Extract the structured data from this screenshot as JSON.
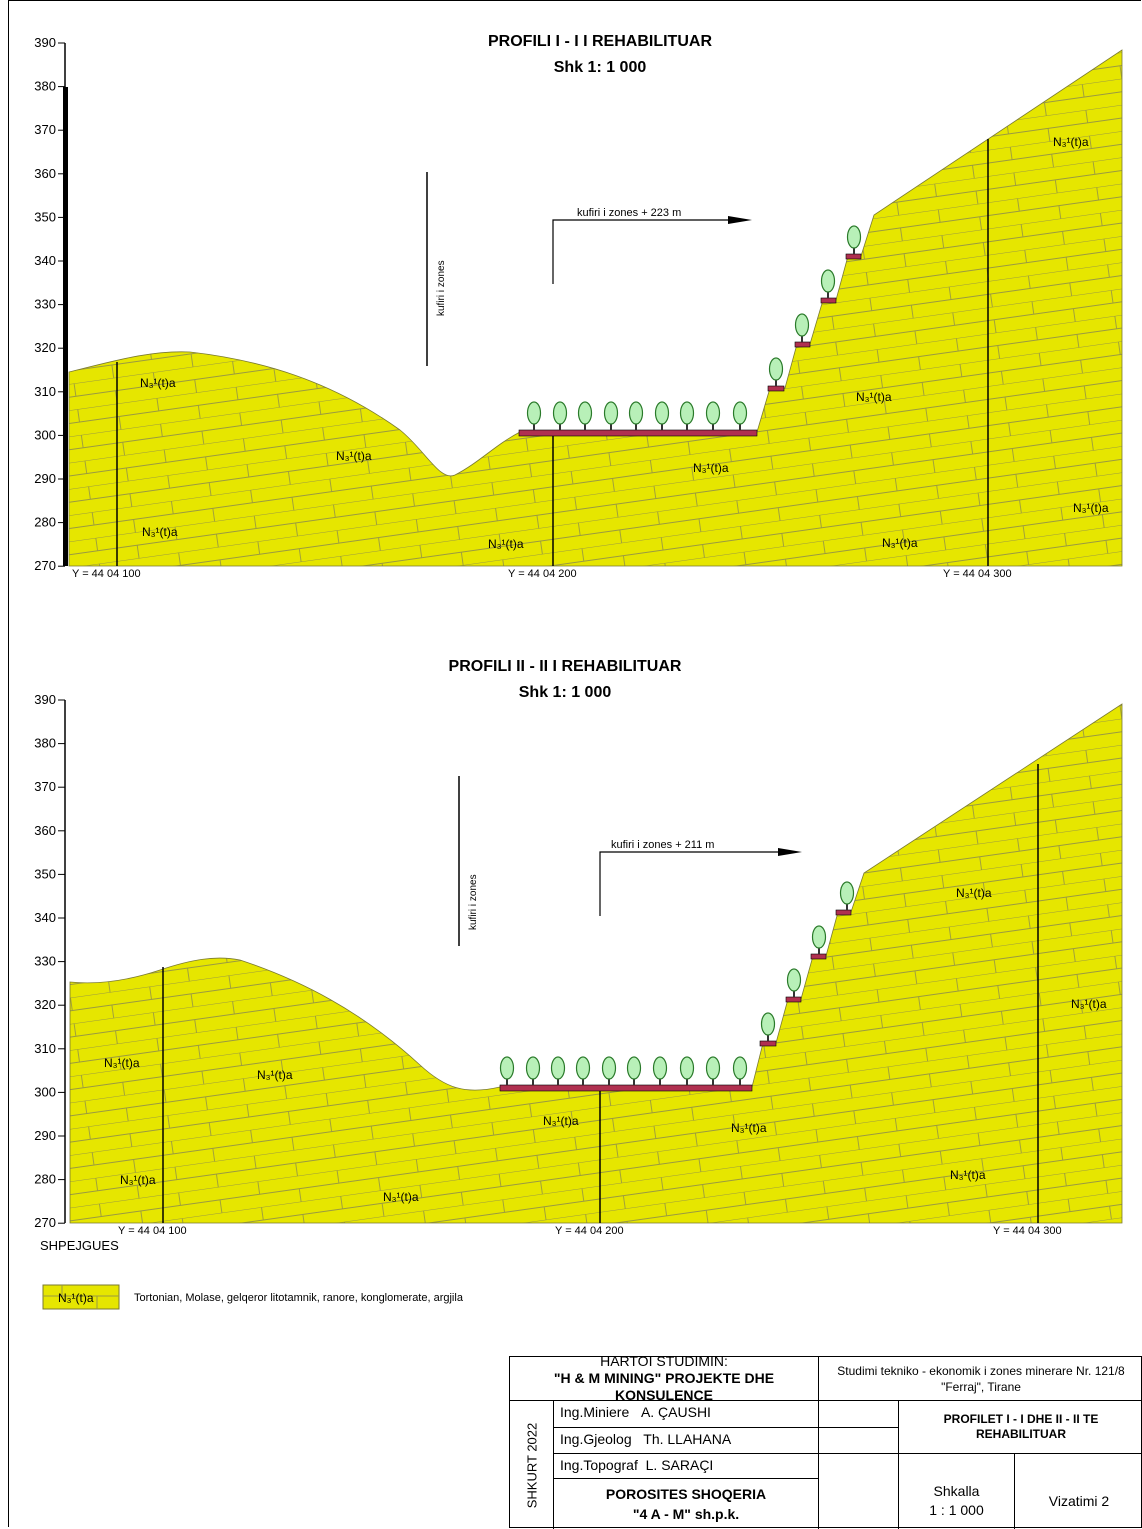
{
  "profile1": {
    "title": "PROFILI I - I I REHABILITUAR",
    "scale": "Shk 1: 1 000",
    "zone_boundary_label": "kufiri i zones",
    "zone_offset_label": "kufiri i zones + 223 m",
    "y_axis_ticks": [
      "390",
      "380",
      "370",
      "360",
      "350",
      "340",
      "330",
      "320",
      "310",
      "300",
      "290",
      "280",
      "270"
    ],
    "section_labels": [
      "Y = 44 04 100",
      "Y = 44 04 200",
      "Y = 44 04 300"
    ],
    "formation_label": "N₃¹(t)a",
    "formation_label_count": 10
  },
  "profile2": {
    "title": "PROFILI II - II I REHABILITUAR",
    "scale": "Shk 1: 1 000",
    "zone_boundary_label": "kufiri i zones",
    "zone_offset_label": "kufiri i zones + 211 m",
    "y_axis_ticks": [
      "390",
      "380",
      "370",
      "360",
      "350",
      "340",
      "330",
      "320",
      "310",
      "300",
      "290",
      "280",
      "270"
    ],
    "section_labels": [
      "Y = 44 04 100",
      "Y = 44 04 200",
      "Y = 44 04 300"
    ],
    "formation_label": "N₃¹(t)a",
    "formation_label_count": 10
  },
  "legend": {
    "title": "SHPEJGUES",
    "swatch_label": "N₃¹(t)a",
    "description": "Tortonian, Molase, gelqeror litotamnik, ranore, konglomerate, argjila"
  },
  "title_block": {
    "author_heading": "HARTOI STUDIMIN:",
    "author_company": "\"H & M MINING\" PROJEKTE DHE KONSULENCE",
    "study_title": "Studimi tekniko - ekonomik i zones minerare Nr. 121/8 \"Ferraj\", Tirane",
    "date": "SHKURT 2022",
    "engineers": [
      {
        "role": "Ing.Miniere",
        "name": "A. ÇAUSHI"
      },
      {
        "role": "Ing.Gjeolog",
        "name": "Th. LLAHANA"
      },
      {
        "role": "Ing.Topograf",
        "name": "L. SARAÇI"
      }
    ],
    "drawing_title": "PROFILET I - I DHE II - II TE REHABILITUAR",
    "client_heading": "POROSITES SHOQERIA",
    "client_name": "\"4 A - M\" sh.p.k.",
    "scale_label": "Shkalla",
    "scale_value": "1 : 1 000",
    "drawing_number": "Vizatimi 2"
  },
  "colors": {
    "terrain_fill": "#e6e600",
    "brick_line": "#9a9a40",
    "tree_fill": "#b8f0b8",
    "terrace_fill": "#b03050"
  }
}
